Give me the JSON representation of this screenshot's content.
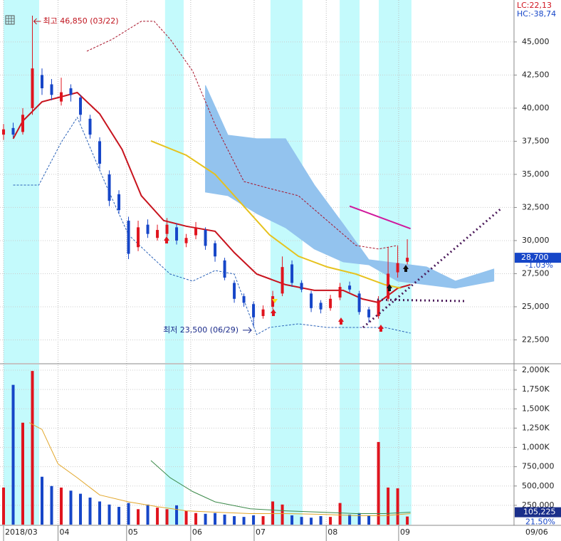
{
  "chart_data": [
    {
      "type": "candlestick",
      "x": [
        0,
        3,
        6,
        9,
        12,
        15,
        18,
        21,
        24,
        27,
        30,
        33,
        36,
        39,
        42,
        45,
        48,
        51,
        54,
        57,
        60,
        63,
        66,
        69,
        72,
        75,
        78,
        81,
        84,
        87,
        90,
        93,
        96,
        99,
        102,
        105,
        108,
        111,
        114,
        117,
        120,
        123,
        126
      ],
      "open": [
        38000,
        38500,
        38200,
        40000,
        42500,
        41800,
        40500,
        41500,
        40800,
        39200,
        37500,
        35000,
        33500,
        31500,
        29500,
        31200,
        30200,
        30500,
        31000,
        29800,
        30400,
        30800,
        29800,
        28500,
        26800,
        25800,
        25200,
        24300,
        25000,
        26000,
        28200,
        26800,
        26000,
        25300,
        24900,
        25700,
        26600,
        26000,
        24800,
        24300,
        25600,
        27600,
        28400
      ],
      "high": [
        38800,
        38900,
        40000,
        46850,
        43000,
        42200,
        42300,
        41800,
        41000,
        39500,
        37800,
        35300,
        33800,
        31800,
        31500,
        31600,
        31200,
        31700,
        31300,
        30500,
        31400,
        31000,
        30000,
        28700,
        27000,
        26000,
        25400,
        25100,
        26200,
        28800,
        28500,
        27000,
        26200,
        25500,
        25900,
        26800,
        26900,
        26200,
        25000,
        25800,
        29500,
        29600,
        30100
      ],
      "low": [
        37600,
        37800,
        38000,
        39500,
        41000,
        40600,
        40200,
        40500,
        39000,
        37700,
        35400,
        32600,
        32000,
        28600,
        29200,
        30200,
        30000,
        30300,
        29700,
        29500,
        30100,
        29300,
        28400,
        27000,
        25300,
        25000,
        23500,
        24100,
        24800,
        25800,
        26500,
        26100,
        24600,
        24500,
        24700,
        25500,
        26100,
        24400,
        23800,
        24100,
        25400,
        27200,
        28200
      ],
      "close": [
        38400,
        38000,
        39500,
        43000,
        41500,
        41000,
        41200,
        41000,
        39500,
        38000,
        35800,
        33000,
        32300,
        29000,
        31000,
        30500,
        30800,
        31200,
        30000,
        30200,
        31000,
        29600,
        28800,
        27200,
        25600,
        25300,
        24200,
        24800,
        25800,
        28000,
        26800,
        26300,
        24900,
        24800,
        25600,
        26500,
        26300,
        24600,
        24200,
        25500,
        27500,
        28300,
        28700
      ],
      "value_labels": [
        null,
        null,
        null,
        null,
        null,
        null,
        null,
        null,
        null,
        null,
        null,
        null,
        null,
        null,
        null,
        null,
        null,
        null,
        null,
        null,
        null,
        null,
        null,
        null,
        null,
        null,
        null,
        null,
        null,
        null,
        null,
        null,
        null,
        null,
        null,
        null,
        null,
        null,
        null,
        null,
        null,
        null,
        "28,700"
      ],
      "change_label": "-1.03%",
      "up_color": "#e0141e",
      "down_color": "#1646c8",
      "xlim": [
        0,
        159.3
      ],
      "xticks": [
        {
          "value": 0,
          "label": "2018/03"
        },
        {
          "value": 17,
          "label": "04"
        },
        {
          "value": 38.4,
          "label": "05"
        },
        {
          "value": 58.4,
          "label": "06"
        },
        {
          "value": 78.2,
          "label": "07"
        },
        {
          "value": 100.7,
          "label": "08"
        },
        {
          "value": 123.3,
          "label": "09"
        }
      ],
      "date_label": "09/06",
      "ylim": [
        20750,
        48060
      ],
      "yticks": [
        {
          "value": 22500,
          "label": "22,500"
        },
        {
          "value": 25000,
          "label": "25,000"
        },
        {
          "value": 27500,
          "label": "27,500"
        },
        {
          "value": 30000,
          "label": "30,000"
        },
        {
          "value": 32500,
          "label": "32,500"
        },
        {
          "value": 35000,
          "label": "35,000"
        },
        {
          "value": 37500,
          "label": "37,500"
        },
        {
          "value": 40000,
          "label": "40,000"
        },
        {
          "value": 42500,
          "label": "42,500"
        },
        {
          "value": 45000,
          "label": "45,000"
        }
      ],
      "grid": true,
      "highlight_color": "#c4fafc",
      "highlight_ranges": [
        [
          0,
          11.1
        ],
        [
          50.4,
          56.2
        ],
        [
          83.3,
          93.3
        ],
        [
          104.9,
          111.1
        ],
        [
          117.1,
          127.3
        ]
      ],
      "cloud": {
        "color": "#93c3ee",
        "x": [
          63,
          70,
          79,
          88,
          97,
          106,
          114,
          123,
          132,
          141,
          153
        ],
        "upper": [
          41720,
          37960,
          37690,
          37690,
          34190,
          31240,
          28550,
          28280,
          28010,
          26940,
          27850
        ],
        "lower": [
          33660,
          33390,
          32040,
          30970,
          29360,
          28390,
          28170,
          26940,
          26670,
          26400,
          26940
        ]
      },
      "lines": [
        {
          "color": "#c8141e",
          "width": 2,
          "dash": false,
          "x": [
            3,
            6,
            12,
            23,
            30,
            37,
            43,
            50,
            57,
            66,
            72,
            79,
            88,
            97,
            106,
            112,
            117,
            123,
            127
          ],
          "values": [
            37690,
            39030,
            40480,
            41180,
            39570,
            36880,
            33390,
            31510,
            31080,
            30700,
            29090,
            27470,
            26670,
            26240,
            26240,
            25590,
            25320,
            26400,
            26670
          ]
        },
        {
          "color": "#e6c21e",
          "width": 2,
          "dash": false,
          "x": [
            46,
            57,
            66,
            75,
            83,
            92,
            101,
            110,
            119,
            124
          ],
          "values": [
            37530,
            36450,
            35000,
            32580,
            30430,
            28820,
            28010,
            27470,
            26670,
            26400
          ]
        },
        {
          "color": "#a8142a",
          "width": 1,
          "dash": true,
          "x": [
            26,
            34,
            43,
            47,
            52,
            59,
            66,
            75,
            83,
            92,
            101,
            110,
            117,
            123
          ],
          "values": [
            44300,
            45210,
            46560,
            46560,
            45210,
            42800,
            38760,
            34460,
            33930,
            33390,
            31510,
            29630,
            29360,
            29630
          ]
        },
        {
          "color": "#2a62b8",
          "width": 1,
          "dash": true,
          "x": [
            3,
            11,
            18,
            23,
            32,
            39,
            46,
            52,
            59,
            66,
            72,
            79,
            83,
            92,
            101,
            110,
            119,
            127
          ],
          "values": [
            34190,
            34190,
            37420,
            39300,
            34190,
            30430,
            28820,
            27470,
            26940,
            27740,
            27470,
            22900,
            23440,
            23710,
            23440,
            23440,
            23440,
            23010
          ]
        },
        {
          "color": "#d0189c",
          "width": 2,
          "dash": false,
          "x": [
            108,
            127
          ],
          "values": [
            32600,
            30900
          ]
        }
      ],
      "annotations": [
        {
          "text": "최고 46,850 (03/22)",
          "color": "#c0141e"
        },
        {
          "text": "최저 23,500 (06/29)",
          "color": "#1a2a8a"
        }
      ],
      "indicator_texts": [
        {
          "text": "LC:22,13",
          "color": "#d0141e"
        },
        {
          "text": "HC:-38,74",
          "color": "#1646c8"
        }
      ]
    },
    {
      "type": "bar",
      "x": [
        0,
        3,
        6,
        9,
        12,
        15,
        18,
        21,
        24,
        27,
        30,
        33,
        36,
        39,
        42,
        45,
        48,
        51,
        54,
        57,
        60,
        63,
        66,
        69,
        72,
        75,
        78,
        81,
        84,
        87,
        90,
        93,
        96,
        99,
        102,
        105,
        108,
        111,
        114,
        117,
        120,
        123,
        126
      ],
      "values": [
        480000,
        1810000,
        1320000,
        1990000,
        620000,
        500000,
        480000,
        440000,
        400000,
        350000,
        300000,
        260000,
        230000,
        280000,
        200000,
        260000,
        220000,
        200000,
        250000,
        180000,
        150000,
        140000,
        150000,
        130000,
        110000,
        100000,
        120000,
        110000,
        300000,
        260000,
        120000,
        100000,
        90000,
        110000,
        100000,
        280000,
        130000,
        150000,
        120000,
        1070000,
        480000,
        470000,
        105225
      ],
      "value_labels": [
        null,
        null,
        null,
        null,
        null,
        null,
        null,
        null,
        null,
        null,
        null,
        null,
        null,
        null,
        null,
        null,
        null,
        null,
        null,
        null,
        null,
        null,
        null,
        null,
        null,
        null,
        null,
        null,
        null,
        null,
        null,
        null,
        null,
        null,
        null,
        null,
        null,
        null,
        null,
        null,
        null,
        null,
        "105,225"
      ],
      "ratio_label": "21.50%",
      "ylim": [
        0,
        2074000
      ],
      "yticks": [
        {
          "value": 250000,
          "label": "250,000"
        },
        {
          "value": 500000,
          "label": "500,000"
        },
        {
          "value": 750000,
          "label": "750,000"
        },
        {
          "value": 1000000,
          "label": "1,000K"
        },
        {
          "value": 1250000,
          "label": "1,250K"
        },
        {
          "value": 1500000,
          "label": "1,500K"
        },
        {
          "value": 1750000,
          "label": "1,750K"
        },
        {
          "value": 2000000,
          "label": "2,000K"
        }
      ],
      "lines": [
        {
          "color": "#e2a62a",
          "x": [
            8,
            12,
            17,
            23,
            30,
            39,
            48,
            57,
            66,
            77,
            88,
            99,
            110,
            119,
            127
          ],
          "values": [
            1321000,
            1232000,
            786000,
            607000,
            384000,
            295000,
            232000,
            179000,
            161000,
            143000,
            143000,
            134000,
            116000,
            116000,
            143000
          ]
        },
        {
          "color": "#3c8a4a",
          "x": [
            46,
            52,
            59,
            66,
            77,
            88,
            99,
            110,
            119,
            127
          ],
          "values": [
            830000,
            607000,
            429000,
            295000,
            205000,
            179000,
            161000,
            143000,
            143000,
            161000
          ]
        }
      ]
    }
  ]
}
